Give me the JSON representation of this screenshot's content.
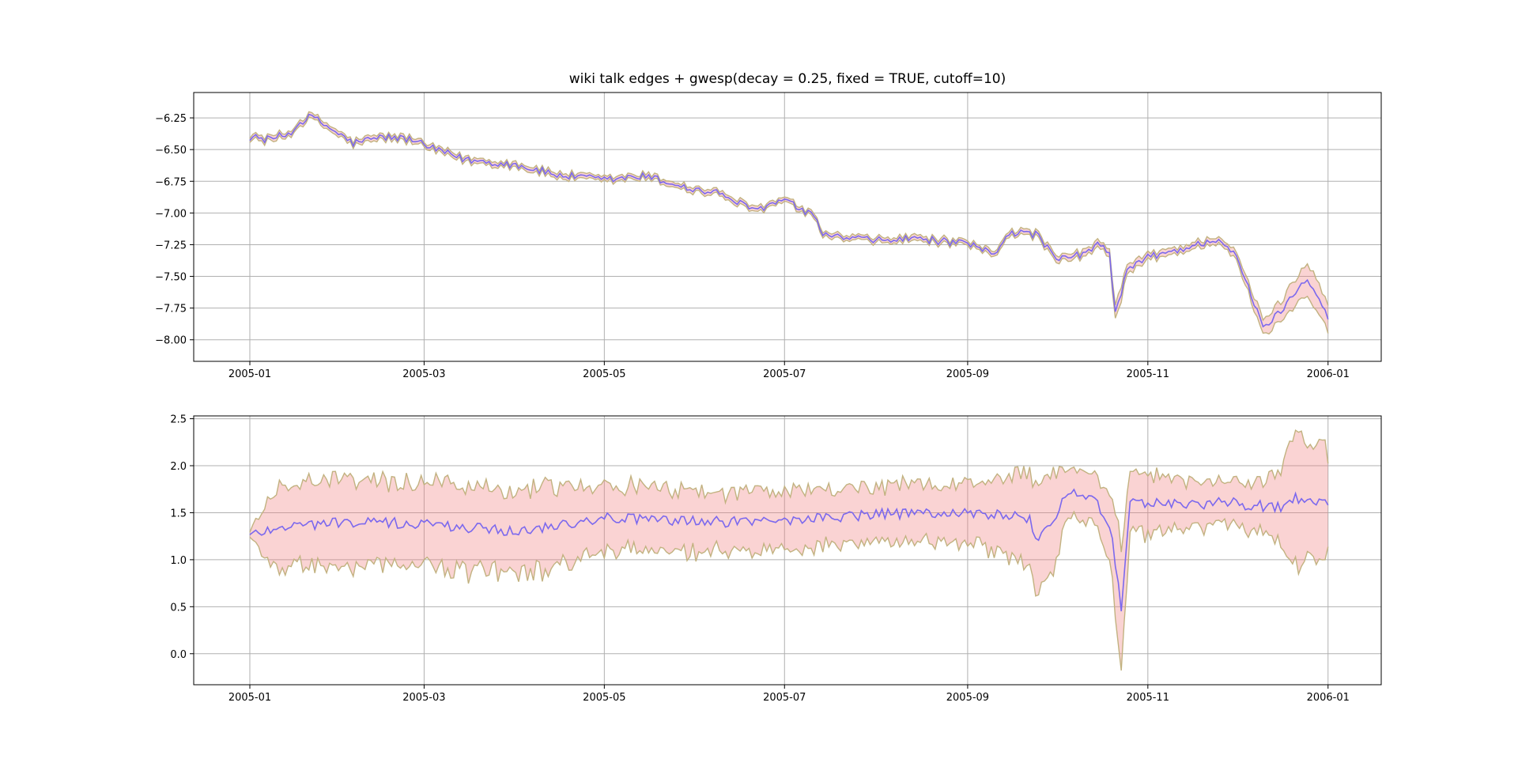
{
  "chart_data": [
    {
      "type": "line",
      "title": "wiki talk edges + gwesp(decay = 0.25, fixed = TRUE, cutoff=10)",
      "xlabel": "",
      "ylabel": "",
      "x_range": [
        "2005-01-01",
        "2006-01-01"
      ],
      "xlim": [
        "2004-12-13",
        "2006-01-19"
      ],
      "ylim": [
        -8.17,
        -6.05
      ],
      "x_ticks": [
        "2005-01",
        "2005-03",
        "2005-05",
        "2005-07",
        "2005-09",
        "2005-11",
        "2006-01"
      ],
      "y_ticks": [
        -6.25,
        -6.5,
        -6.75,
        -7.0,
        -7.25,
        -7.5,
        -7.75,
        -8.0
      ],
      "y_tick_labels": [
        "−6.25",
        "−6.50",
        "−6.75",
        "−7.00",
        "−7.25",
        "−7.50",
        "−7.75",
        "−8.00"
      ],
      "grid": true,
      "legend": "none",
      "series_color": "#7b68ee",
      "band_color": "#f08080",
      "band_edge_color": "#c2b280",
      "keypoints": [
        [
          "2005-01-01",
          -6.4,
          0.02
        ],
        [
          "2005-01-07",
          -6.42,
          0.02
        ],
        [
          "2005-01-14",
          -6.38,
          0.02
        ],
        [
          "2005-01-19",
          -6.27,
          0.02
        ],
        [
          "2005-01-22",
          -6.24,
          0.02
        ],
        [
          "2005-01-28",
          -6.33,
          0.02
        ],
        [
          "2005-02-05",
          -6.45,
          0.02
        ],
        [
          "2005-02-15",
          -6.4,
          0.02
        ],
        [
          "2005-02-25",
          -6.42,
          0.02
        ],
        [
          "2005-03-01",
          -6.47,
          0.02
        ],
        [
          "2005-03-15",
          -6.58,
          0.02
        ],
        [
          "2005-04-01",
          -6.62,
          0.02
        ],
        [
          "2005-04-15",
          -6.7,
          0.02
        ],
        [
          "2005-05-01",
          -6.74,
          0.02
        ],
        [
          "2005-05-15",
          -6.71,
          0.02
        ],
        [
          "2005-06-01",
          -6.82,
          0.02
        ],
        [
          "2005-06-10",
          -6.85,
          0.02
        ],
        [
          "2005-06-20",
          -6.98,
          0.02
        ],
        [
          "2005-07-01",
          -6.9,
          0.02
        ],
        [
          "2005-07-10",
          -7.02,
          0.02
        ],
        [
          "2005-07-15",
          -7.18,
          0.02
        ],
        [
          "2005-08-01",
          -7.22,
          0.02
        ],
        [
          "2005-08-15",
          -7.2,
          0.02
        ],
        [
          "2005-09-01",
          -7.25,
          0.02
        ],
        [
          "2005-09-10",
          -7.32,
          0.02
        ],
        [
          "2005-09-15",
          -7.15,
          0.02
        ],
        [
          "2005-09-25",
          -7.17,
          0.02
        ],
        [
          "2005-10-01",
          -7.38,
          0.025
        ],
        [
          "2005-10-10",
          -7.32,
          0.025
        ],
        [
          "2005-10-15",
          -7.26,
          0.025
        ],
        [
          "2005-10-19",
          -7.3,
          0.03
        ],
        [
          "2005-10-21",
          -7.8,
          0.06
        ],
        [
          "2005-10-25",
          -7.45,
          0.04
        ],
        [
          "2005-11-01",
          -7.35,
          0.025
        ],
        [
          "2005-11-15",
          -7.27,
          0.025
        ],
        [
          "2005-11-25",
          -7.2,
          0.025
        ],
        [
          "2005-12-01",
          -7.35,
          0.03
        ],
        [
          "2005-12-10",
          -7.9,
          0.06
        ],
        [
          "2005-12-15",
          -7.8,
          0.07
        ],
        [
          "2005-12-25",
          -7.5,
          0.12
        ],
        [
          "2006-01-01",
          -7.82,
          0.12
        ]
      ],
      "series": [
        {
          "values_description_source": "keypoints",
          "role": "mean"
        }
      ]
    },
    {
      "type": "line",
      "title": "",
      "xlabel": "",
      "ylabel": "",
      "x_range": [
        "2005-01-01",
        "2006-01-01"
      ],
      "xlim": [
        "2004-12-13",
        "2006-01-19"
      ],
      "ylim": [
        -0.33,
        2.53
      ],
      "x_ticks": [
        "2005-01",
        "2005-03",
        "2005-05",
        "2005-07",
        "2005-09",
        "2005-11",
        "2006-01"
      ],
      "y_ticks": [
        0.0,
        0.5,
        1.0,
        1.5,
        2.0,
        2.5
      ],
      "y_tick_labels": [
        "0.0",
        "0.5",
        "1.0",
        "1.5",
        "2.0",
        "2.5"
      ],
      "grid": true,
      "legend": "none",
      "series_color": "#7b68ee",
      "band_color": "#f08080",
      "band_edge_color": "#c2b280",
      "keypoints": [
        [
          "2005-01-01",
          1.26,
          0.03
        ],
        [
          "2005-01-10",
          1.35,
          0.42
        ],
        [
          "2005-02-01",
          1.4,
          0.45
        ],
        [
          "2005-03-01",
          1.38,
          0.45
        ],
        [
          "2005-04-01",
          1.3,
          0.48
        ],
        [
          "2005-05-01",
          1.45,
          0.35
        ],
        [
          "2005-06-01",
          1.4,
          0.33
        ],
        [
          "2005-07-01",
          1.42,
          0.3
        ],
        [
          "2005-08-01",
          1.48,
          0.3
        ],
        [
          "2005-09-01",
          1.5,
          0.3
        ],
        [
          "2005-09-22",
          1.45,
          0.5
        ],
        [
          "2005-09-24",
          1.2,
          0.55
        ],
        [
          "2005-09-28",
          1.3,
          0.6
        ],
        [
          "2005-10-05",
          1.75,
          0.25
        ],
        [
          "2005-10-15",
          1.6,
          0.25
        ],
        [
          "2005-10-20",
          1.2,
          0.4
        ],
        [
          "2005-10-23",
          0.45,
          0.65
        ],
        [
          "2005-10-26",
          1.6,
          0.35
        ],
        [
          "2005-11-10",
          1.6,
          0.25
        ],
        [
          "2005-12-01",
          1.6,
          0.22
        ],
        [
          "2005-12-15",
          1.55,
          0.35
        ],
        [
          "2005-12-20",
          1.65,
          0.65
        ],
        [
          "2006-01-01",
          1.6,
          0.55
        ]
      ],
      "series": [
        {
          "values_description_source": "keypoints",
          "role": "mean"
        }
      ]
    }
  ]
}
